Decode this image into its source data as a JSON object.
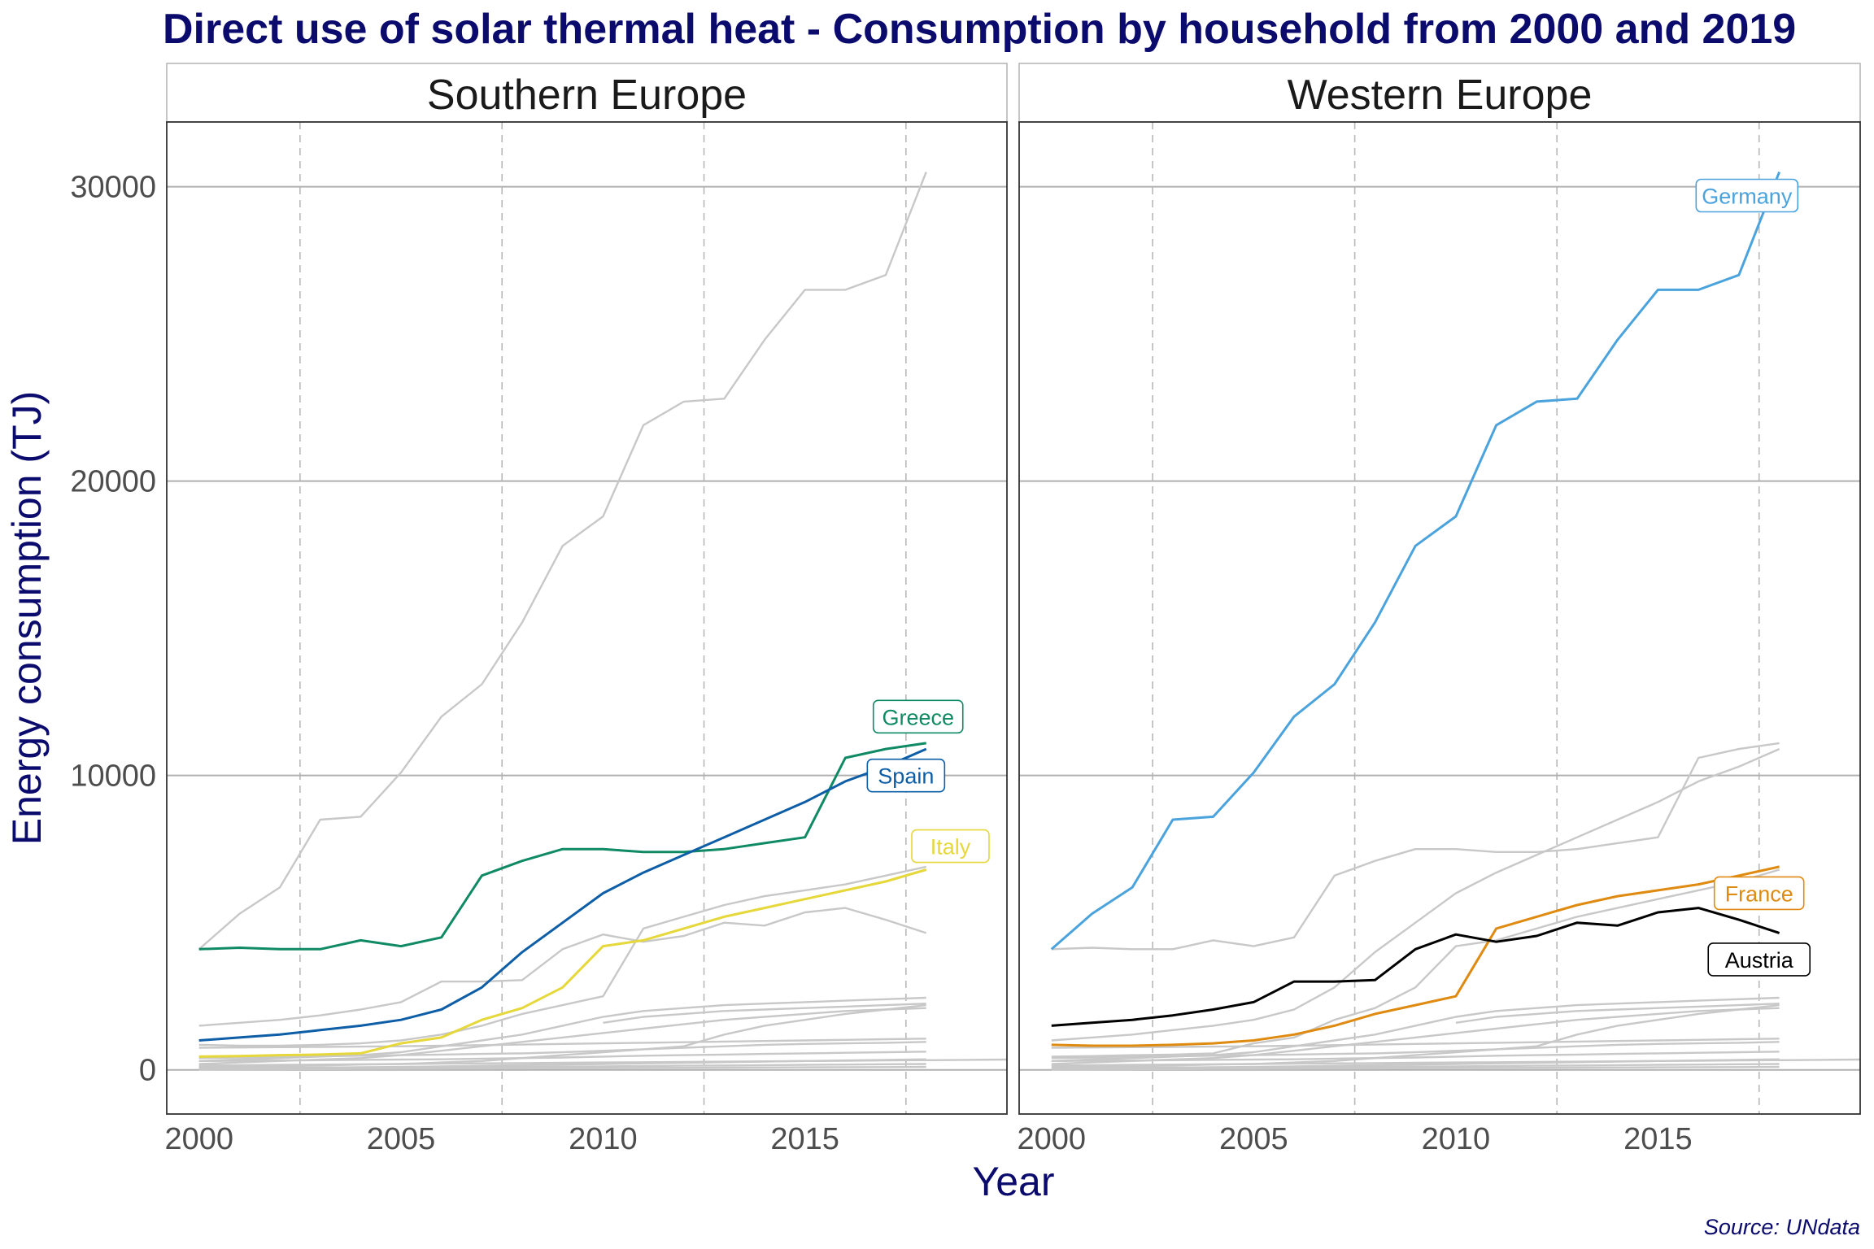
{
  "title": "Direct use of solar thermal heat - Consumption by household from 2000 and 2019",
  "caption": "Source: UNdata",
  "chart_data": {
    "type": "line",
    "title": "Direct use of solar thermal heat - Consumption by household from 2000 and 2019",
    "xlabel": "Year",
    "ylabel": "Energy consumption (TJ)",
    "xlim": [
      1999.2,
      2020
    ],
    "ylim": [
      -1500,
      32200
    ],
    "x_ticks": [
      2000,
      2005,
      2010,
      2015
    ],
    "x_tick_labels": [
      "2000",
      "2005",
      "2010",
      "2015"
    ],
    "y_ticks": [
      0,
      10000,
      20000,
      30000
    ],
    "y_tick_labels": [
      "0",
      "10000",
      "20000",
      "30000"
    ],
    "grid": "horizontal major solid, vertical minor dashed",
    "colors": {
      "background_series": "#c8c8c8",
      "Greece": "#0f8a64",
      "Spain": "#0d5ea6",
      "Italy": "#e6d83a",
      "Germany": "#4ba3dd",
      "France": "#df8a10",
      "Austria": "#000000",
      "title": "#0b0b6e"
    },
    "context_series": [
      {
        "x": [
          2000,
          2001,
          2002,
          2003,
          2004,
          2005,
          2006,
          2007,
          2008,
          2009,
          2010,
          2011,
          2012,
          2013,
          2014,
          2015,
          2016,
          2017,
          2018
        ],
        "values": [
          4100,
          5300,
          6200,
          8500,
          8600,
          10100,
          12000,
          13100,
          15200,
          17800,
          18800,
          21900,
          22700,
          22800,
          24800,
          26500,
          26500,
          27000,
          30500
        ]
      },
      {
        "x": [
          2000,
          2001,
          2002,
          2003,
          2004,
          2005,
          2006,
          2007,
          2008,
          2009,
          2010,
          2011,
          2012,
          2013,
          2014,
          2015,
          2016,
          2017,
          2018
        ],
        "values": [
          4100,
          4150,
          4100,
          4100,
          4400,
          4200,
          4500,
          6600,
          7100,
          7500,
          7500,
          7400,
          7400,
          7500,
          7700,
          7900,
          10600,
          10900,
          11100
        ]
      },
      {
        "x": [
          2000,
          2001,
          2002,
          2003,
          2004,
          2005,
          2006,
          2007,
          2008,
          2009,
          2010,
          2011,
          2012,
          2013,
          2014,
          2015,
          2016,
          2017,
          2018
        ],
        "values": [
          1000,
          1100,
          1200,
          1350,
          1500,
          1700,
          2050,
          2800,
          4000,
          5000,
          6000,
          6700,
          7300,
          7900,
          8500,
          9100,
          9800,
          10300,
          10900
        ]
      },
      {
        "x": [
          2000,
          2001,
          2002,
          2003,
          2004,
          2005,
          2006,
          2007,
          2008,
          2009,
          2010,
          2011,
          2012,
          2013,
          2014,
          2015,
          2016,
          2017,
          2018
        ],
        "values": [
          850,
          820,
          820,
          850,
          900,
          1000,
          1200,
          1500,
          1900,
          2200,
          2500,
          4800,
          5200,
          5600,
          5900,
          6100,
          6300,
          6600,
          6900
        ]
      },
      {
        "x": [
          2000,
          2001,
          2002,
          2003,
          2004,
          2005,
          2006,
          2007,
          2008,
          2009,
          2010,
          2011,
          2012,
          2013,
          2014,
          2015,
          2016,
          2017,
          2018
        ],
        "values": [
          450,
          470,
          500,
          520,
          560,
          900,
          1100,
          1700,
          2100,
          2800,
          4200,
          4400,
          4800,
          5200,
          5500,
          5800,
          6100,
          6400,
          6800
        ]
      },
      {
        "x": [
          2000,
          2001,
          2002,
          2003,
          2004,
          2005,
          2006,
          2007,
          2008,
          2009,
          2010,
          2011,
          2012,
          2013,
          2014,
          2015,
          2016,
          2017,
          2018
        ],
        "values": [
          1500,
          1600,
          1700,
          1850,
          2050,
          2300,
          3000,
          3000,
          3050,
          4100,
          4600,
          4350,
          4550,
          5000,
          4900,
          5350,
          5500,
          5100,
          4650
        ]
      },
      {
        "x": [
          2000,
          2001,
          2002,
          2003,
          2004,
          2005,
          2006,
          2007,
          2008,
          2009,
          2010,
          2011,
          2012,
          2013,
          2014,
          2015,
          2016,
          2017,
          2018
        ],
        "values": [
          300,
          350,
          400,
          450,
          500,
          600,
          800,
          1000,
          1200,
          1500,
          1800,
          2000,
          2100,
          2200,
          2250,
          2300,
          2350,
          2400,
          2450
        ]
      },
      {
        "x": [
          2010,
          2011,
          2012,
          2013,
          2014,
          2015,
          2016,
          2017,
          2018
        ],
        "values": [
          1600,
          1800,
          1900,
          2000,
          2050,
          2100,
          2150,
          2200,
          2250
        ]
      },
      {
        "x": [
          2000,
          2001,
          2002,
          2003,
          2004,
          2005,
          2006,
          2007,
          2008,
          2009,
          2010,
          2011,
          2012,
          2013,
          2014,
          2015,
          2016,
          2017,
          2018
        ],
        "values": [
          200,
          250,
          300,
          350,
          400,
          500,
          650,
          800,
          950,
          1100,
          1250,
          1400,
          1550,
          1700,
          1800,
          1900,
          2000,
          2050,
          2100
        ]
      },
      {
        "x": [
          2000,
          2001,
          2002,
          2003,
          2004,
          2005,
          2006,
          2007,
          2008,
          2009,
          2010,
          2011,
          2012,
          2013,
          2014,
          2015,
          2016,
          2017,
          2018
        ],
        "values": [
          100,
          100,
          120,
          150,
          180,
          200,
          250,
          300,
          400,
          500,
          600,
          700,
          800,
          1200,
          1500,
          1700,
          1900,
          2050,
          2200
        ]
      },
      {
        "x": [
          2000,
          2001,
          2002,
          2003,
          2004,
          2005,
          2006,
          2007,
          2008,
          2009,
          2010,
          2011,
          2012,
          2013,
          2014,
          2015,
          2016,
          2017,
          2018
        ],
        "values": [
          750,
          760,
          770,
          780,
          790,
          800,
          820,
          840,
          860,
          880,
          900,
          920,
          940,
          960,
          980,
          1000,
          1020,
          1040,
          1060
        ]
      },
      {
        "x": [
          2000,
          2001,
          2002,
          2003,
          2004,
          2005,
          2006,
          2007,
          2008,
          2009,
          2010,
          2011,
          2012,
          2013,
          2014,
          2015,
          2016,
          2017,
          2018
        ],
        "values": [
          400,
          420,
          440,
          460,
          480,
          500,
          520,
          540,
          560,
          600,
          650,
          700,
          750,
          800,
          850,
          880,
          900,
          920,
          950
        ]
      },
      {
        "x": [
          2000,
          2001,
          2002,
          2003,
          2004,
          2005,
          2006,
          2007,
          2008,
          2009,
          2010,
          2011,
          2012,
          2013,
          2014,
          2015,
          2016,
          2017,
          2018,
          2019,
          2020
        ],
        "values": [
          150,
          160,
          170,
          180,
          190,
          200,
          210,
          220,
          230,
          240,
          250,
          260,
          270,
          280,
          290,
          300,
          310,
          320,
          330,
          340,
          350
        ]
      },
      {
        "x": [
          2000,
          2001,
          2002,
          2003,
          2004,
          2005,
          2006,
          2007,
          2008,
          2009,
          2010,
          2011,
          2012,
          2013,
          2014,
          2015,
          2016,
          2017,
          2018
        ],
        "values": [
          300,
          310,
          320,
          330,
          340,
          350,
          360,
          380,
          400,
          420,
          450,
          480,
          500,
          520,
          540,
          560,
          580,
          600,
          620
        ]
      },
      {
        "x": [
          2000,
          2001,
          2002,
          2003,
          2004,
          2005,
          2006,
          2007,
          2008,
          2009,
          2010,
          2011,
          2012,
          2013,
          2014,
          2015,
          2016,
          2017,
          2018
        ],
        "values": [
          50,
          60,
          70,
          80,
          90,
          100,
          120,
          140,
          160,
          180,
          200,
          220,
          240,
          260,
          280,
          300,
          320,
          340,
          360
        ]
      },
      {
        "x": [
          2000,
          2001,
          2002,
          2003,
          2004,
          2005,
          2006,
          2007,
          2008,
          2009,
          2010,
          2011,
          2012,
          2013,
          2014,
          2015,
          2016,
          2017,
          2018
        ],
        "values": [
          20,
          30,
          40,
          50,
          60,
          70,
          80,
          90,
          100,
          110,
          120,
          130,
          140,
          150,
          160,
          170,
          180,
          190,
          200
        ]
      },
      {
        "x": [
          2000,
          2001,
          2002,
          2003,
          2004,
          2005,
          2006,
          2007,
          2008,
          2009,
          2010,
          2011,
          2012,
          2013,
          2014,
          2015,
          2016,
          2017,
          2018
        ],
        "values": [
          10,
          15,
          20,
          25,
          30,
          35,
          40,
          45,
          50,
          55,
          60,
          65,
          70,
          75,
          80,
          85,
          90,
          95,
          100
        ]
      }
    ],
    "panels": [
      {
        "strip": "Southern Europe",
        "series": [
          {
            "name": "Greece",
            "color": "#0f8a64",
            "label_x": 2017.8,
            "label_y": 12000,
            "x": [
              2000,
              2001,
              2002,
              2003,
              2004,
              2005,
              2006,
              2007,
              2008,
              2009,
              2010,
              2011,
              2012,
              2013,
              2014,
              2015,
              2016,
              2017,
              2018
            ],
            "values": [
              4100,
              4150,
              4100,
              4100,
              4400,
              4200,
              4500,
              6600,
              7100,
              7500,
              7500,
              7400,
              7400,
              7500,
              7700,
              7900,
              10600,
              10900,
              11100
            ]
          },
          {
            "name": "Spain",
            "color": "#0d5ea6",
            "label_x": 2017.5,
            "label_y": 10000,
            "x": [
              2000,
              2001,
              2002,
              2003,
              2004,
              2005,
              2006,
              2007,
              2008,
              2009,
              2010,
              2011,
              2012,
              2013,
              2014,
              2015,
              2016,
              2017,
              2018
            ],
            "values": [
              1000,
              1100,
              1200,
              1350,
              1500,
              1700,
              2050,
              2800,
              4000,
              5000,
              6000,
              6700,
              7300,
              7900,
              8500,
              9100,
              9800,
              10300,
              10900
            ]
          },
          {
            "name": "Italy",
            "color": "#e6d83a",
            "label_x": 2018.6,
            "label_y": 7600,
            "x": [
              2000,
              2001,
              2002,
              2003,
              2004,
              2005,
              2006,
              2007,
              2008,
              2009,
              2010,
              2011,
              2012,
              2013,
              2014,
              2015,
              2016,
              2017,
              2018
            ],
            "values": [
              450,
              470,
              500,
              520,
              560,
              900,
              1100,
              1700,
              2100,
              2800,
              4200,
              4400,
              4800,
              5200,
              5500,
              5800,
              6100,
              6400,
              6800
            ]
          }
        ]
      },
      {
        "strip": "Western Europe",
        "series": [
          {
            "name": "Germany",
            "color": "#4ba3dd",
            "label_x": 2017.2,
            "label_y": 29700,
            "x": [
              2000,
              2001,
              2002,
              2003,
              2004,
              2005,
              2006,
              2007,
              2008,
              2009,
              2010,
              2011,
              2012,
              2013,
              2014,
              2015,
              2016,
              2017,
              2018
            ],
            "values": [
              4100,
              5300,
              6200,
              8500,
              8600,
              10100,
              12000,
              13100,
              15200,
              17800,
              18800,
              21900,
              22700,
              22800,
              24800,
              26500,
              26500,
              27000,
              30500
            ]
          },
          {
            "name": "France",
            "color": "#df8a10",
            "label_x": 2017.5,
            "label_y": 6000,
            "x": [
              2000,
              2001,
              2002,
              2003,
              2004,
              2005,
              2006,
              2007,
              2008,
              2009,
              2010,
              2011,
              2012,
              2013,
              2014,
              2015,
              2016,
              2017,
              2018
            ],
            "values": [
              850,
              820,
              820,
              850,
              900,
              1000,
              1200,
              1500,
              1900,
              2200,
              2500,
              4800,
              5200,
              5600,
              5900,
              6100,
              6300,
              6600,
              6900
            ]
          },
          {
            "name": "Austria",
            "color": "#000000",
            "label_x": 2017.5,
            "label_y": 3750,
            "x": [
              2000,
              2001,
              2002,
              2003,
              2004,
              2005,
              2006,
              2007,
              2008,
              2009,
              2010,
              2011,
              2012,
              2013,
              2014,
              2015,
              2016,
              2017,
              2018
            ],
            "values": [
              1500,
              1600,
              1700,
              1850,
              2050,
              2300,
              3000,
              3000,
              3050,
              4100,
              4600,
              4350,
              4550,
              5000,
              4900,
              5350,
              5500,
              5100,
              4650
            ]
          }
        ]
      }
    ]
  }
}
